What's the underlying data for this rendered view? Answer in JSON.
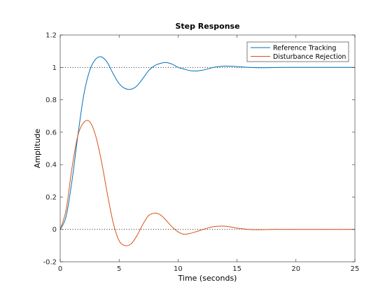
{
  "chart_data": {
    "type": "line",
    "title": "Step Response",
    "xlabel": "Time (seconds)",
    "ylabel": "Amplitude",
    "xlim": [
      0,
      25
    ],
    "ylim": [
      -0.2,
      1.2
    ],
    "x_ticks": [
      0,
      5,
      10,
      15,
      20,
      25
    ],
    "y_ticks": [
      -0.2,
      0,
      0.2,
      0.4,
      0.6,
      0.8,
      1,
      1.2
    ],
    "x_tick_labels": [
      "0",
      "5",
      "10",
      "15",
      "20",
      "25"
    ],
    "y_tick_labels": [
      "-0.2",
      "0",
      "0.2",
      "0.4",
      "0.6",
      "0.8",
      "1",
      "1.2"
    ],
    "reference_lines": [
      {
        "y": 1,
        "style": "dotted",
        "color": "#000000"
      },
      {
        "y": 0,
        "style": "dotted",
        "color": "#000000"
      }
    ],
    "grid": false,
    "legend_position": "top-right",
    "series": [
      {
        "name": "Reference Tracking",
        "color": "#0072BD",
        "x": [
          0,
          0.5,
          1,
          1.5,
          2,
          2.5,
          3,
          3.5,
          4,
          4.5,
          5,
          5.5,
          6,
          6.5,
          7,
          7.5,
          8,
          8.5,
          9,
          9.5,
          10,
          10.5,
          11,
          11.5,
          12,
          12.5,
          13,
          13.5,
          14,
          15,
          16,
          17,
          18,
          19,
          20,
          21,
          22,
          23,
          24,
          25
        ],
        "y": [
          0,
          0.08,
          0.3,
          0.58,
          0.83,
          0.98,
          1.05,
          1.065,
          1.03,
          0.96,
          0.9,
          0.87,
          0.865,
          0.885,
          0.93,
          0.98,
          1.01,
          1.025,
          1.03,
          1.02,
          1.0,
          0.99,
          0.98,
          0.978,
          0.982,
          0.99,
          1.0,
          1.005,
          1.008,
          1.005,
          1.0,
          0.998,
          0.999,
          1.0,
          1.0,
          1.0,
          1.0,
          1.0,
          1.0,
          1.0
        ]
      },
      {
        "name": "Disturbance Rejection",
        "color": "#D95319",
        "x": [
          0,
          0.5,
          1,
          1.5,
          2,
          2.5,
          3,
          3.5,
          4,
          4.5,
          5,
          5.5,
          6,
          6.5,
          7,
          7.5,
          8,
          8.5,
          9,
          9.5,
          10,
          10.5,
          11,
          11.5,
          12,
          12.5,
          13,
          13.5,
          14,
          14.5,
          15,
          16,
          17,
          18,
          19,
          20,
          21,
          22,
          23,
          24,
          25
        ],
        "y": [
          0,
          0.12,
          0.38,
          0.58,
          0.66,
          0.665,
          0.58,
          0.42,
          0.22,
          0.04,
          -0.07,
          -0.1,
          -0.09,
          -0.04,
          0.03,
          0.085,
          0.1,
          0.09,
          0.055,
          0.015,
          -0.015,
          -0.03,
          -0.025,
          -0.015,
          -0.003,
          0.008,
          0.017,
          0.02,
          0.02,
          0.015,
          0.008,
          0.0,
          -0.002,
          0.0,
          0.0,
          0.0,
          0.0,
          0.0,
          0.0,
          0.0,
          0.0
        ]
      }
    ]
  }
}
